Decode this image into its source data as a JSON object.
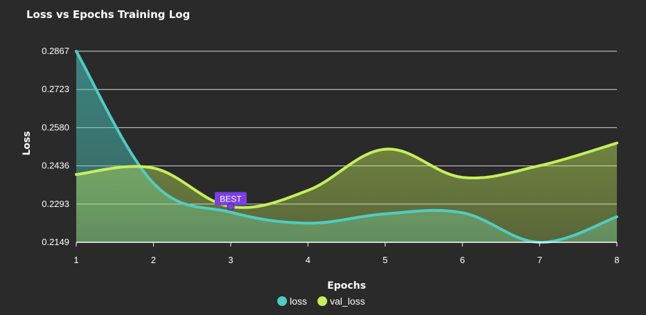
{
  "chart_data": {
    "type": "line",
    "title": "Loss vs Epochs Training Log",
    "xlabel": "Epochs",
    "ylabel": "Loss",
    "x": [
      1,
      2,
      3,
      4,
      5,
      6,
      7,
      8
    ],
    "x_ticks": [
      "1",
      "2",
      "3",
      "4",
      "5",
      "6",
      "7",
      "8"
    ],
    "y_ticks": [
      "0.2867",
      "0.2723",
      "0.2580",
      "0.2436",
      "0.2293",
      "0.2149"
    ],
    "ylim": [
      0.2149,
      0.2867
    ],
    "grid": true,
    "legend_position": "bottom",
    "series": [
      {
        "name": "loss",
        "color": "#4ecdc4",
        "values": [
          0.2867,
          0.2371,
          0.2262,
          0.2221,
          0.2256,
          0.226,
          0.2149,
          0.2245
        ]
      },
      {
        "name": "val_loss",
        "color": "#c6ef5a",
        "values": [
          0.2404,
          0.2428,
          0.2283,
          0.2344,
          0.2499,
          0.2393,
          0.2437,
          0.2522
        ]
      }
    ],
    "annotation": {
      "text": "BEST",
      "x": 3,
      "y": 0.2283,
      "color": "#7b3fe4"
    }
  }
}
